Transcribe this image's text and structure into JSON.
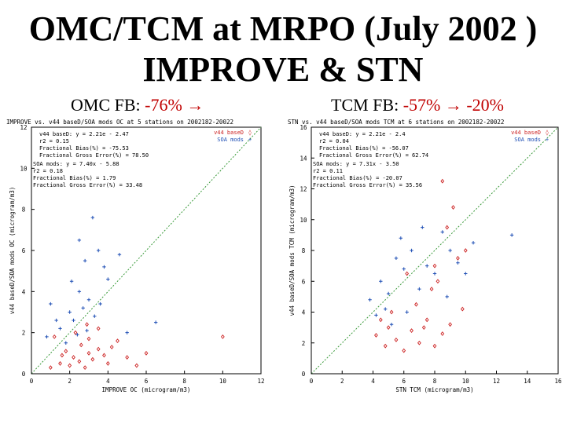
{
  "title_line1": "OMC/TCM at MRPO (July 2002 )",
  "title_line2": "IMPROVE & STN",
  "subtitles": {
    "left": {
      "label": "OMC FB:",
      "value": "-76%",
      "arrow": "→"
    },
    "right": {
      "label": "TCM FB:",
      "value": "-57%",
      "arrow": "→",
      "value2": "-20%"
    }
  },
  "colors": {
    "base": "#cc2222",
    "soa": "#1f4fb5",
    "diag": "#3a9a3a",
    "accent": "#c00000"
  },
  "chart_data": [
    {
      "type": "scatter",
      "title": "IMPROVE vs. v44 baseD/SOA mods OC at 5 stations on 2002182-20022",
      "xlabel": "IMPROVE OC (microgram/m3)",
      "ylabel": "v44 baseD/SOA mods OC (microgram/m3)",
      "xlim": [
        0,
        12
      ],
      "ylim": [
        0,
        12
      ],
      "xticks": [
        "0",
        "2",
        "4",
        "6",
        "8",
        "10",
        "12"
      ],
      "yticks": [
        "0",
        "2",
        "4",
        "6",
        "8",
        "10",
        "12"
      ],
      "legend": [
        {
          "name": "v44 baseD",
          "marker": "◊"
        },
        {
          "name": "SOA mods",
          "marker": "+"
        }
      ],
      "stats_base": [
        "v44 baseD: y = 2.21e - 2.47",
        "r2 = 0.15",
        "Fractional Bias(%) = -75.53",
        "Fractional Gross Error(%) = 78.50"
      ],
      "stats_soa": [
        "SOA mods: y = 7.40x - 5.88",
        "r2 = 0.18",
        "Fractional Bias(%) = 1.79",
        "Fractional Gross Error(%) = 33.48"
      ],
      "series": [
        {
          "name": "v44 baseD",
          "marker": "diamond",
          "points": [
            [
              1.0,
              0.3
            ],
            [
              1.5,
              0.5
            ],
            [
              2.0,
              0.4
            ],
            [
              2.2,
              0.8
            ],
            [
              2.5,
              0.6
            ],
            [
              2.8,
              0.3
            ],
            [
              3.0,
              1.0
            ],
            [
              3.2,
              0.7
            ],
            [
              3.5,
              1.2
            ],
            [
              3.8,
              0.9
            ],
            [
              1.8,
              1.1
            ],
            [
              2.6,
              1.4
            ],
            [
              4.0,
              0.5
            ],
            [
              4.5,
              1.6
            ],
            [
              5.0,
              0.8
            ],
            [
              5.5,
              0.4
            ],
            [
              6.0,
              1.0
            ],
            [
              1.2,
              1.8
            ],
            [
              2.3,
              2.0
            ],
            [
              3.0,
              1.7
            ],
            [
              3.5,
              2.2
            ],
            [
              1.6,
              0.9
            ],
            [
              2.9,
              2.4
            ],
            [
              4.2,
              1.3
            ],
            [
              10.0,
              1.8
            ]
          ]
        },
        {
          "name": "SOA mods",
          "marker": "plus",
          "points": [
            [
              0.8,
              1.8
            ],
            [
              1.5,
              2.2
            ],
            [
              2.0,
              3.0
            ],
            [
              2.5,
              4.0
            ],
            [
              2.8,
              5.5
            ],
            [
              3.0,
              3.6
            ],
            [
              3.2,
              7.6
            ],
            [
              3.5,
              6.0
            ],
            [
              4.0,
              4.6
            ],
            [
              2.2,
              2.6
            ],
            [
              1.0,
              3.4
            ],
            [
              2.7,
              3.2
            ],
            [
              3.8,
              5.2
            ],
            [
              2.5,
              6.5
            ],
            [
              1.8,
              1.5
            ],
            [
              3.3,
              2.8
            ],
            [
              2.1,
              4.5
            ],
            [
              6.5,
              2.5
            ],
            [
              5.0,
              2.0
            ],
            [
              2.9,
              2.1
            ],
            [
              1.3,
              2.6
            ],
            [
              2.4,
              1.9
            ],
            [
              3.6,
              3.4
            ],
            [
              4.6,
              5.8
            ]
          ]
        }
      ]
    },
    {
      "type": "scatter",
      "title": "STN vs. v44 baseD/SOA mods TCM at 6 stations on 2002182-20022",
      "xlabel": "STN TCM (microgram/m3)",
      "ylabel": "v44 baseD/SOA mods TCM (microgram/m3)",
      "xlim": [
        0,
        16
      ],
      "ylim": [
        0,
        16
      ],
      "xticks": [
        "0",
        "2",
        "4",
        "6",
        "8",
        "10",
        "12",
        "14",
        "16"
      ],
      "yticks": [
        "0",
        "2",
        "4",
        "6",
        "8",
        "10",
        "12",
        "14",
        "16"
      ],
      "legend": [
        {
          "name": "v44 baseD",
          "marker": "◊"
        },
        {
          "name": "SOA mods",
          "marker": "+"
        }
      ],
      "stats_base": [
        "v44 baseD: y = 2.21e - 2.4",
        "r2 = 0.04",
        "Fractional Bias(%) = -56.07",
        "Fractional Gross Error(%) = 62.74"
      ],
      "stats_soa": [
        "SOA mods: y = 7.31x - 3.50",
        "r2 = 0.11",
        "Fractional Bias(%) = -20.07",
        "Fractional Gross Error(%) = 35.56"
      ],
      "series": [
        {
          "name": "v44 baseD",
          "marker": "diamond",
          "points": [
            [
              4.2,
              2.5
            ],
            [
              4.8,
              1.8
            ],
            [
              5.0,
              3.0
            ],
            [
              5.5,
              2.2
            ],
            [
              6.0,
              1.5
            ],
            [
              6.5,
              2.8
            ],
            [
              7.0,
              2.0
            ],
            [
              7.5,
              3.5
            ],
            [
              8.0,
              1.8
            ],
            [
              8.5,
              2.6
            ],
            [
              9.0,
              3.2
            ],
            [
              5.2,
              4.0
            ],
            [
              6.8,
              4.5
            ],
            [
              7.8,
              5.5
            ],
            [
              8.2,
              6.0
            ],
            [
              9.5,
              7.5
            ],
            [
              10.0,
              8.0
            ],
            [
              8.8,
              9.5
            ],
            [
              9.2,
              10.8
            ],
            [
              8.5,
              12.5
            ],
            [
              8.0,
              7.0
            ],
            [
              6.2,
              6.5
            ],
            [
              7.3,
              3.0
            ],
            [
              4.5,
              3.5
            ],
            [
              9.8,
              4.2
            ]
          ]
        },
        {
          "name": "SOA mods",
          "marker": "plus",
          "points": [
            [
              3.8,
              4.8
            ],
            [
              4.2,
              3.8
            ],
            [
              4.5,
              6.0
            ],
            [
              5.0,
              5.2
            ],
            [
              5.5,
              7.5
            ],
            [
              6.0,
              6.8
            ],
            [
              6.5,
              8.0
            ],
            [
              7.0,
              5.5
            ],
            [
              7.5,
              7.0
            ],
            [
              8.0,
              6.5
            ],
            [
              8.5,
              9.2
            ],
            [
              9.0,
              8.0
            ],
            [
              9.5,
              7.2
            ],
            [
              10.0,
              6.5
            ],
            [
              10.5,
              8.5
            ],
            [
              13.0,
              9.0
            ],
            [
              5.2,
              3.2
            ],
            [
              4.8,
              4.2
            ],
            [
              6.2,
              4.0
            ],
            [
              7.2,
              9.5
            ],
            [
              5.8,
              8.8
            ],
            [
              8.8,
              5.0
            ]
          ]
        }
      ]
    }
  ]
}
